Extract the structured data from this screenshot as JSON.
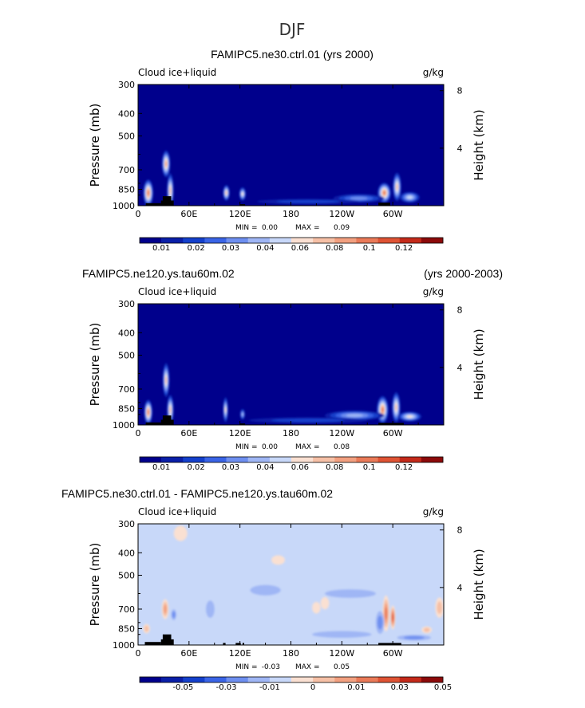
{
  "page_title": "DJF",
  "units": "g/kg",
  "colors": {
    "fill_colors": [
      "#00008c",
      "#0a1fa8",
      "#1440cc",
      "#3a64e6",
      "#6e8ff0",
      "#9fb6f5",
      "#c8d8f9",
      "#fae0d2",
      "#f6c0a6",
      "#f2a080",
      "#ea7a58",
      "#df5334",
      "#c42a1a",
      "#8c0a0a"
    ],
    "terrain": "#000000"
  },
  "chart_data": [
    {
      "type": "contour",
      "title": "FAMIPC5.ne30.ctrl.01 (yrs 2000)",
      "title_right": "",
      "variable": "Cloud ice+liquid",
      "units": "g/kg",
      "xlabel": "",
      "ylabel": "Pressure (mb)",
      "ylabel_right": "Height (km)",
      "x_ticks": [
        "0",
        "60E",
        "120E",
        "180",
        "120W",
        "60W"
      ],
      "x_tick_lons": [
        0,
        60,
        120,
        180,
        240,
        300
      ],
      "xlim": [
        0,
        360
      ],
      "y_ticks": [
        "300",
        "400",
        "500",
        "700",
        "850",
        "1000"
      ],
      "y_tick_vals": [
        300,
        400,
        500,
        700,
        850,
        1000
      ],
      "ylim": [
        1000,
        300
      ],
      "height_ticks": [
        "8",
        "4"
      ],
      "height_tick_vals": [
        8,
        4
      ],
      "min_label": "MIN =",
      "min_value": "0.00",
      "max_label": "MAX =",
      "max_value": "0.09",
      "colorbar_labels": [
        "0.01",
        "0.02",
        "0.03",
        "0.04",
        "0.06",
        "0.08",
        "0.1",
        "0.12"
      ],
      "features": [
        {
          "lon": 12,
          "p": 880,
          "wlon": 6,
          "hp": 120,
          "level": 10
        },
        {
          "lon": 33,
          "p": 660,
          "wlon": 5,
          "hp": 90,
          "level": 9
        },
        {
          "lon": 38,
          "p": 860,
          "wlon": 4,
          "hp": 150,
          "level": 8
        },
        {
          "lon": 104,
          "p": 880,
          "wlon": 4,
          "hp": 70,
          "level": 8
        },
        {
          "lon": 123,
          "p": 890,
          "wlon": 4,
          "hp": 60,
          "level": 7
        },
        {
          "lon": 290,
          "p": 880,
          "wlon": 8,
          "hp": 90,
          "level": 10
        },
        {
          "lon": 305,
          "p": 830,
          "wlon": 5,
          "hp": 120,
          "level": 8
        },
        {
          "lon": 320,
          "p": 920,
          "wlon": 12,
          "hp": 50,
          "level": 6
        },
        {
          "lon": 260,
          "p": 930,
          "wlon": 30,
          "hp": 40,
          "level": 4
        },
        {
          "lon": 200,
          "p": 960,
          "wlon": 60,
          "hp": 25,
          "level": 2
        }
      ],
      "terrain": [
        {
          "lon_start": 9,
          "lon_end": 27,
          "p_top": 975
        },
        {
          "lon_start": 27,
          "lon_end": 42,
          "p_top": 950
        },
        {
          "lon_start": 29,
          "lon_end": 39,
          "p_top": 910
        },
        {
          "lon_start": 120,
          "lon_end": 126,
          "p_top": 985
        },
        {
          "lon_start": 283,
          "lon_end": 297,
          "p_top": 970
        }
      ]
    },
    {
      "type": "contour",
      "title": "FAMIPC5.ne120.ys.tau60m.02",
      "title_right": "(yrs 2000-2003)",
      "variable": "Cloud ice+liquid",
      "units": "g/kg",
      "xlabel": "",
      "ylabel": "Pressure (mb)",
      "ylabel_right": "Height (km)",
      "x_ticks": [
        "0",
        "60E",
        "120E",
        "180",
        "120W",
        "60W"
      ],
      "x_tick_lons": [
        0,
        60,
        120,
        180,
        240,
        300
      ],
      "xlim": [
        0,
        360
      ],
      "y_ticks": [
        "300",
        "400",
        "500",
        "700",
        "850",
        "1000"
      ],
      "y_tick_vals": [
        300,
        400,
        500,
        700,
        850,
        1000
      ],
      "ylim": [
        1000,
        300
      ],
      "height_ticks": [
        "8",
        "4"
      ],
      "height_tick_vals": [
        8,
        4
      ],
      "min_label": "MIN =",
      "min_value": "0.00",
      "max_label": "MAX =",
      "max_value": "0.08",
      "colorbar_labels": [
        "0.01",
        "0.02",
        "0.03",
        "0.04",
        "0.06",
        "0.08",
        "0.1",
        "0.12"
      ],
      "features": [
        {
          "lon": 12,
          "p": 880,
          "wlon": 5,
          "hp": 110,
          "level": 10
        },
        {
          "lon": 33,
          "p": 640,
          "wlon": 4,
          "hp": 110,
          "level": 8
        },
        {
          "lon": 38,
          "p": 860,
          "wlon": 4,
          "hp": 130,
          "level": 8
        },
        {
          "lon": 103,
          "p": 860,
          "wlon": 3,
          "hp": 110,
          "level": 7
        },
        {
          "lon": 123,
          "p": 900,
          "wlon": 3,
          "hp": 50,
          "level": 5
        },
        {
          "lon": 288,
          "p": 860,
          "wlon": 7,
          "hp": 120,
          "level": 10
        },
        {
          "lon": 304,
          "p": 840,
          "wlon": 5,
          "hp": 130,
          "level": 8
        },
        {
          "lon": 320,
          "p": 920,
          "wlon": 14,
          "hp": 45,
          "level": 7
        },
        {
          "lon": 255,
          "p": 910,
          "wlon": 35,
          "hp": 45,
          "level": 5
        },
        {
          "lon": 200,
          "p": 955,
          "wlon": 70,
          "hp": 28,
          "level": 2
        }
      ],
      "terrain": [
        {
          "lon_start": 9,
          "lon_end": 27,
          "p_top": 975
        },
        {
          "lon_start": 27,
          "lon_end": 42,
          "p_top": 950
        },
        {
          "lon_start": 29,
          "lon_end": 39,
          "p_top": 910
        },
        {
          "lon_start": 120,
          "lon_end": 126,
          "p_top": 985
        },
        {
          "lon_start": 283,
          "lon_end": 313,
          "p_top": 980
        }
      ]
    },
    {
      "type": "contour-difference",
      "title": "FAMIPC5.ne30.ctrl.01 - FAMIPC5.ne120.ys.tau60m.02",
      "title_right": "",
      "variable": "Cloud ice+liquid",
      "units": "g/kg",
      "xlabel": "",
      "ylabel": "Pressure (mb)",
      "ylabel_right": "Height (km)",
      "x_ticks": [
        "0",
        "60E",
        "120E",
        "180",
        "120W",
        "60W"
      ],
      "x_tick_lons": [
        0,
        60,
        120,
        180,
        240,
        300
      ],
      "xlim": [
        0,
        360
      ],
      "y_ticks": [
        "300",
        "400",
        "500",
        "700",
        "850",
        "1000"
      ],
      "y_tick_vals": [
        300,
        400,
        500,
        700,
        850,
        1000
      ],
      "ylim": [
        1000,
        300
      ],
      "height_ticks": [
        "8",
        "4"
      ],
      "height_tick_vals": [
        8,
        4
      ],
      "min_label": "MIN =",
      "min_value": "-0.03",
      "max_label": "MAX =",
      "max_value": "0.05",
      "colorbar_labels": [
        "-0.05",
        "-0.03",
        "-0.01",
        "0",
        "0.01",
        "0.03",
        "0.05"
      ],
      "features": [
        {
          "lon": 32,
          "p": 700,
          "wlon": 4,
          "hp": 70,
          "level": 9
        },
        {
          "lon": 10,
          "p": 850,
          "wlon": 4,
          "hp": 40,
          "level": 8
        },
        {
          "lon": 42,
          "p": 740,
          "wlon": 3,
          "hp": 40,
          "level": 4
        },
        {
          "lon": 292,
          "p": 730,
          "wlon": 4,
          "hp": 130,
          "level": 10
        },
        {
          "lon": 300,
          "p": 760,
          "wlon": 3,
          "hp": 90,
          "level": 11
        },
        {
          "lon": 285,
          "p": 800,
          "wlon": 5,
          "hp": 90,
          "level": 4
        },
        {
          "lon": 355,
          "p": 690,
          "wlon": 5,
          "hp": 70,
          "level": 8
        },
        {
          "lon": 340,
          "p": 860,
          "wlon": 6,
          "hp": 30,
          "level": 8
        },
        {
          "lon": 210,
          "p": 690,
          "wlon": 5,
          "hp": 40,
          "level": 7
        },
        {
          "lon": 220,
          "p": 660,
          "wlon": 5,
          "hp": 40,
          "level": 7
        },
        {
          "lon": 50,
          "p": 330,
          "wlon": 8,
          "hp": 25,
          "level": 7
        },
        {
          "lon": 165,
          "p": 430,
          "wlon": 8,
          "hp": 20,
          "level": 7
        },
        {
          "lon": 150,
          "p": 580,
          "wlon": 18,
          "hp": 30,
          "level": 5
        },
        {
          "lon": 250,
          "p": 600,
          "wlon": 30,
          "hp": 25,
          "level": 5
        },
        {
          "lon": 240,
          "p": 900,
          "wlon": 35,
          "hp": 30,
          "level": 5
        },
        {
          "lon": 325,
          "p": 930,
          "wlon": 20,
          "hp": 25,
          "level": 4
        },
        {
          "lon": 85,
          "p": 700,
          "wlon": 5,
          "hp": 60,
          "level": 5
        }
      ],
      "terrain": [
        {
          "lon_start": 8,
          "lon_end": 27,
          "p_top": 970
        },
        {
          "lon_start": 27,
          "lon_end": 42,
          "p_top": 945
        },
        {
          "lon_start": 29,
          "lon_end": 39,
          "p_top": 900
        },
        {
          "lon_start": 100,
          "lon_end": 103,
          "p_top": 980
        },
        {
          "lon_start": 115,
          "lon_end": 121,
          "p_top": 980
        },
        {
          "lon_start": 123,
          "lon_end": 125,
          "p_top": 980
        },
        {
          "lon_start": 283,
          "lon_end": 310,
          "p_top": 980
        }
      ]
    }
  ]
}
